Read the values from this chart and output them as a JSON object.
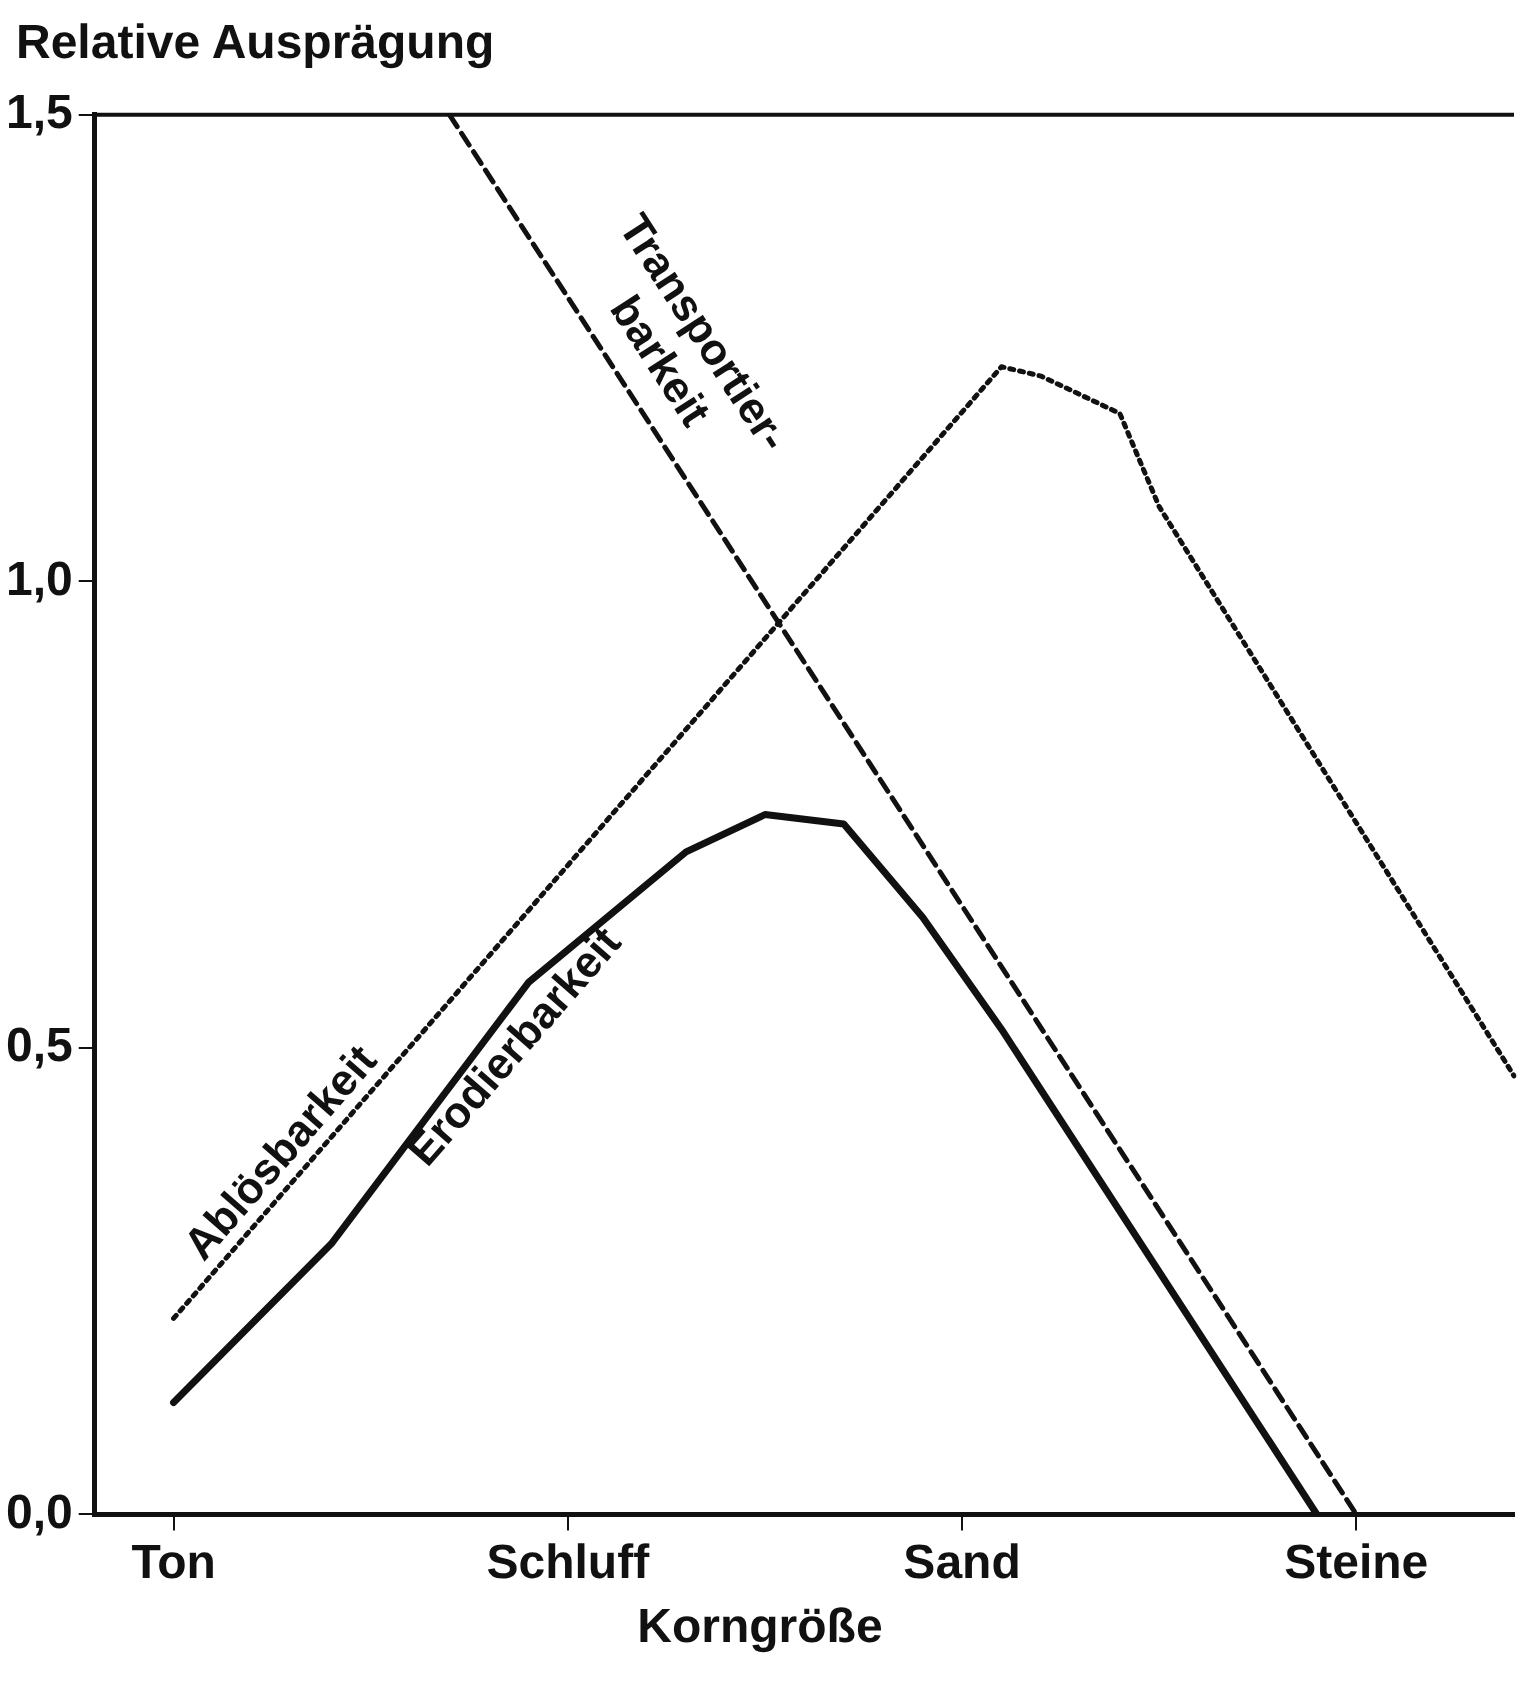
{
  "chart_data": {
    "type": "line",
    "ylabel": "Relative Ausprägung",
    "xlabel": "Korngröße",
    "categories": [
      null,
      null,
      "Ton",
      null,
      null,
      null,
      null,
      null,
      null,
      null,
      null,
      null,
      "Schluff",
      null,
      null,
      null,
      null,
      null,
      null,
      null,
      null,
      null,
      "Sand",
      null,
      null,
      null,
      null,
      null,
      null,
      null,
      null,
      null,
      "Steine",
      null,
      null,
      null,
      null
    ],
    "ylim": [
      0,
      1.5
    ],
    "yticks": [
      {
        "value": 0,
        "label": "0,0"
      },
      {
        "value": 0.5,
        "label": "0,5"
      },
      {
        "value": 1,
        "label": "1,0"
      },
      {
        "value": 1.5,
        "label": "1,5"
      }
    ],
    "grid": false,
    "legend": false,
    "marker": "none",
    "series": [
      {
        "name": "Transportier-\nbarkeit",
        "color": "#111111",
        "line_style": "dashed",
        "values": [
          null,
          null,
          null,
          null,
          null,
          null,
          null,
          null,
          null,
          1.5,
          null,
          null,
          null,
          null,
          null,
          null,
          null,
          null,
          null,
          null,
          null,
          null,
          null,
          null,
          null,
          null,
          null,
          null,
          null,
          null,
          null,
          null,
          0,
          null,
          null,
          null,
          null
        ]
      },
      {
        "name": "Ablösbarkeit",
        "color": "#111111",
        "line_style": "dotted",
        "values": [
          null,
          null,
          0.21,
          null,
          null,
          null,
          null,
          null,
          null,
          null,
          null,
          null,
          null,
          null,
          null,
          null,
          0.89,
          null,
          null,
          null,
          null,
          null,
          null,
          1.23,
          1.22,
          null,
          1.18,
          1.08,
          null,
          null,
          null,
          null,
          null,
          null,
          null,
          null,
          0.47
        ]
      },
      {
        "name": "Erodierbarkeit",
        "color": "#111111",
        "line_style": "solid",
        "values": [
          null,
          null,
          0.12,
          null,
          null,
          null,
          0.29,
          null,
          null,
          null,
          null,
          0.57,
          null,
          null,
          null,
          0.71,
          null,
          0.75,
          null,
          0.74,
          null,
          0.64,
          null,
          0.52,
          null,
          null,
          null,
          null,
          null,
          null,
          null,
          0,
          null,
          null,
          null,
          null,
          null
        ]
      }
    ]
  }
}
